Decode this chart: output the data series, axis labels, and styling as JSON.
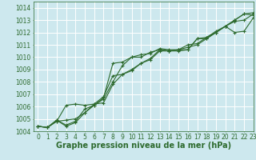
{
  "xlabel": "Graphe pression niveau de la mer (hPa)",
  "xlim": [
    -0.5,
    23
  ],
  "ylim": [
    1004,
    1014.5
  ],
  "yticks": [
    1004,
    1005,
    1006,
    1007,
    1008,
    1009,
    1010,
    1011,
    1012,
    1013,
    1014
  ],
  "xticks": [
    0,
    1,
    2,
    3,
    4,
    5,
    6,
    7,
    8,
    9,
    10,
    11,
    12,
    13,
    14,
    15,
    16,
    17,
    18,
    19,
    20,
    21,
    22,
    23
  ],
  "bg_color": "#cde8ee",
  "grid_color": "#ffffff",
  "line_color": "#2d6a2d",
  "series": [
    [
      1004.4,
      1004.3,
      1004.9,
      1004.4,
      1004.7,
      1005.5,
      1006.1,
      1006.7,
      1009.5,
      1009.6,
      1010.0,
      1010.2,
      1010.3,
      1010.7,
      1010.6,
      1010.6,
      1010.6,
      1011.5,
      1011.6,
      1012.1,
      1012.5,
      1013.0,
      1013.5,
      1013.6
    ],
    [
      1004.4,
      1004.3,
      1004.8,
      1006.1,
      1006.2,
      1006.1,
      1006.2,
      1006.8,
      1008.5,
      1008.6,
      1009.0,
      1009.5,
      1009.8,
      1010.5,
      1010.5,
      1010.6,
      1010.8,
      1011.0,
      1011.5,
      1012.0,
      1012.5,
      1012.0,
      1012.1,
      1013.2
    ],
    [
      1004.4,
      1004.3,
      1004.8,
      1004.9,
      1005.0,
      1005.5,
      1006.2,
      1006.3,
      1007.8,
      1008.6,
      1008.9,
      1009.5,
      1009.9,
      1010.6,
      1010.5,
      1010.6,
      1011.0,
      1011.1,
      1011.6,
      1012.0,
      1012.5,
      1012.9,
      1013.0,
      1013.5
    ],
    [
      1004.4,
      1004.3,
      1004.9,
      1004.5,
      1004.8,
      1005.8,
      1006.1,
      1006.6,
      1008.0,
      1009.3,
      1010.0,
      1010.0,
      1010.4,
      1010.6,
      1010.5,
      1010.5,
      1010.6,
      1011.5,
      1011.5,
      1012.0,
      1012.5,
      1013.0,
      1013.5,
      1013.4
    ]
  ],
  "marker_size": 3.0,
  "line_width": 0.8,
  "font_color": "#2d6a2d",
  "tick_font_size": 5.5,
  "label_font_size": 7.0
}
